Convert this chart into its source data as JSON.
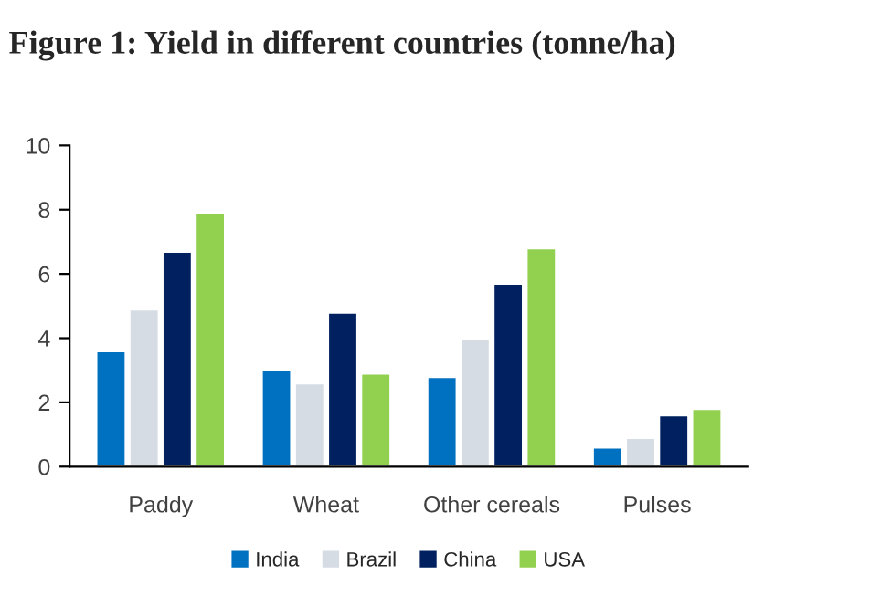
{
  "chart_data": {
    "type": "bar",
    "title": "Figure 1: Yield in different countries (tonne/ha)",
    "categories": [
      "Paddy",
      "Wheat",
      "Other cereals",
      "Pulses"
    ],
    "series": [
      {
        "name": "India",
        "color": "#0070c0",
        "values": [
          3.6,
          3.0,
          2.8,
          0.6
        ]
      },
      {
        "name": "Brazil",
        "color": "#d6dce4",
        "values": [
          4.9,
          2.6,
          4.0,
          0.9
        ]
      },
      {
        "name": "China",
        "color": "#002060",
        "values": [
          6.7,
          4.8,
          5.7,
          1.6
        ]
      },
      {
        "name": "USA",
        "color": "#92d050",
        "values": [
          7.9,
          2.9,
          6.8,
          1.8
        ]
      }
    ],
    "ylim": [
      0,
      10
    ],
    "yticks": [
      0,
      2,
      4,
      6,
      8,
      10
    ],
    "grid": false,
    "legend": "bottom"
  }
}
